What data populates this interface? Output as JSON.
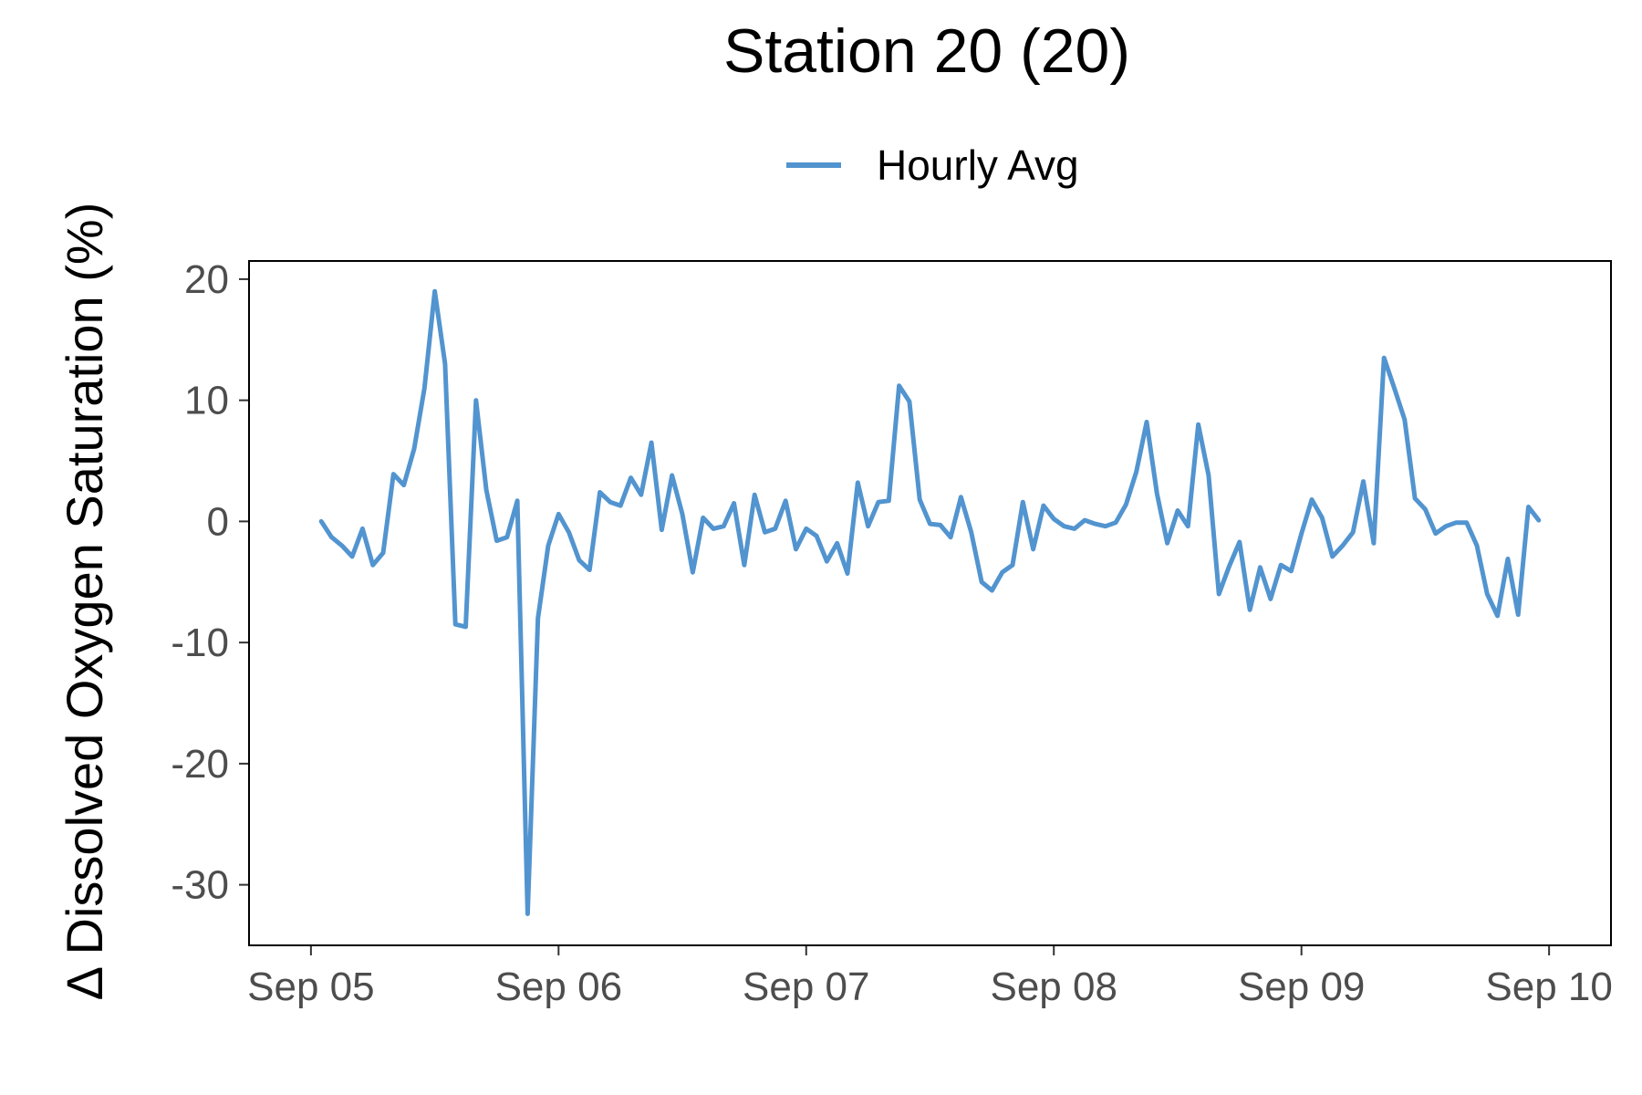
{
  "chart_data": {
    "type": "line",
    "title": "Station 20 (20)",
    "ylabel": "Δ Dissolved Oxygen Saturation (%)",
    "xlabel": "",
    "ylim": [
      -35,
      21.5
    ],
    "yticks": [
      20,
      10,
      0,
      -10,
      -20,
      -30
    ],
    "ytick_labels": [
      "20",
      "10",
      "0",
      "-10",
      "-20",
      "-30"
    ],
    "xlim": [
      "2020-09-04 18:00",
      "2020-09-10 06:00"
    ],
    "xticks": [
      "2020-09-05",
      "2020-09-06",
      "2020-09-07",
      "2020-09-08",
      "2020-09-09",
      "2020-09-10"
    ],
    "xtick_labels": [
      "Sep 05",
      "Sep 06",
      "Sep 07",
      "Sep 08",
      "Sep 09",
      "Sep 10"
    ],
    "legend_position": "top",
    "grid": false,
    "series": [
      {
        "name": "Hourly Avg",
        "color": "#5294cf",
        "x": [
          "2020-09-05 01:00",
          "2020-09-05 02:00",
          "2020-09-05 03:00",
          "2020-09-05 04:00",
          "2020-09-05 05:00",
          "2020-09-05 06:00",
          "2020-09-05 07:00",
          "2020-09-05 08:00",
          "2020-09-05 09:00",
          "2020-09-05 10:00",
          "2020-09-05 11:00",
          "2020-09-05 12:00",
          "2020-09-05 13:00",
          "2020-09-05 14:00",
          "2020-09-05 15:00",
          "2020-09-05 16:00",
          "2020-09-05 17:00",
          "2020-09-05 18:00",
          "2020-09-05 19:00",
          "2020-09-05 20:00",
          "2020-09-05 21:00",
          "2020-09-05 22:00",
          "2020-09-05 23:00",
          "2020-09-06 00:00",
          "2020-09-06 01:00",
          "2020-09-06 02:00",
          "2020-09-06 03:00",
          "2020-09-06 04:00",
          "2020-09-06 05:00",
          "2020-09-06 06:00",
          "2020-09-06 07:00",
          "2020-09-06 08:00",
          "2020-09-06 09:00",
          "2020-09-06 10:00",
          "2020-09-06 11:00",
          "2020-09-06 12:00",
          "2020-09-06 13:00",
          "2020-09-06 14:00",
          "2020-09-06 15:00",
          "2020-09-06 16:00",
          "2020-09-06 17:00",
          "2020-09-06 18:00",
          "2020-09-06 19:00",
          "2020-09-06 20:00",
          "2020-09-06 21:00",
          "2020-09-06 22:00",
          "2020-09-06 23:00",
          "2020-09-07 00:00",
          "2020-09-07 01:00",
          "2020-09-07 02:00",
          "2020-09-07 03:00",
          "2020-09-07 04:00",
          "2020-09-07 05:00",
          "2020-09-07 06:00",
          "2020-09-07 07:00",
          "2020-09-07 08:00",
          "2020-09-07 09:00",
          "2020-09-07 10:00",
          "2020-09-07 11:00",
          "2020-09-07 12:00",
          "2020-09-07 13:00",
          "2020-09-07 14:00",
          "2020-09-07 15:00",
          "2020-09-07 16:00",
          "2020-09-07 17:00",
          "2020-09-07 18:00",
          "2020-09-07 19:00",
          "2020-09-07 20:00",
          "2020-09-07 21:00",
          "2020-09-07 22:00",
          "2020-09-07 23:00",
          "2020-09-08 00:00",
          "2020-09-08 01:00",
          "2020-09-08 02:00",
          "2020-09-08 03:00",
          "2020-09-08 04:00",
          "2020-09-08 05:00",
          "2020-09-08 06:00",
          "2020-09-08 07:00",
          "2020-09-08 08:00",
          "2020-09-08 09:00",
          "2020-09-08 10:00",
          "2020-09-08 11:00",
          "2020-09-08 12:00",
          "2020-09-08 13:00",
          "2020-09-08 14:00",
          "2020-09-08 15:00",
          "2020-09-08 16:00",
          "2020-09-08 17:00",
          "2020-09-08 18:00",
          "2020-09-08 19:00",
          "2020-09-08 20:00",
          "2020-09-08 21:00",
          "2020-09-08 22:00",
          "2020-09-08 23:00",
          "2020-09-09 00:00",
          "2020-09-09 01:00",
          "2020-09-09 02:00",
          "2020-09-09 03:00",
          "2020-09-09 04:00",
          "2020-09-09 05:00",
          "2020-09-09 06:00",
          "2020-09-09 07:00",
          "2020-09-09 08:00",
          "2020-09-09 09:00",
          "2020-09-09 10:00",
          "2020-09-09 11:00",
          "2020-09-09 12:00",
          "2020-09-09 13:00",
          "2020-09-09 14:00",
          "2020-09-09 15:00",
          "2020-09-09 16:00",
          "2020-09-09 17:00",
          "2020-09-09 18:00",
          "2020-09-09 19:00",
          "2020-09-09 20:00",
          "2020-09-09 21:00",
          "2020-09-09 22:00",
          "2020-09-09 23:00"
        ],
        "values": [
          0.0,
          -1.3,
          -2.0,
          -2.9,
          -0.6,
          -3.6,
          -2.6,
          3.9,
          3.0,
          6.0,
          11.0,
          19.0,
          13.0,
          -8.5,
          -8.7,
          10.0,
          2.6,
          -1.6,
          -1.3,
          1.7,
          -32.4,
          -8.0,
          -2.0,
          0.6,
          -0.9,
          -3.2,
          -4.0,
          2.4,
          1.6,
          1.3,
          3.6,
          2.2,
          6.5,
          -0.7,
          3.8,
          0.6,
          -4.2,
          0.3,
          -0.6,
          -0.4,
          1.5,
          -3.6,
          2.2,
          -0.9,
          -0.6,
          1.7,
          -2.3,
          -0.6,
          -1.2,
          -3.3,
          -1.8,
          -4.3,
          3.2,
          -0.4,
          1.6,
          1.7,
          11.2,
          9.9,
          1.8,
          -0.2,
          -0.3,
          -1.3,
          2.0,
          -0.9,
          -5.0,
          -5.7,
          -4.2,
          -3.6,
          1.6,
          -2.3,
          1.3,
          0.2,
          -0.4,
          -0.6,
          0.1,
          -0.2,
          -0.4,
          -0.1,
          1.4,
          4.1,
          8.2,
          2.3,
          -1.8,
          0.9,
          -0.4,
          8.0,
          3.8,
          -6.0,
          -3.7,
          -1.7,
          -7.3,
          -3.8,
          -6.4,
          -3.6,
          -4.1,
          -1.0,
          1.8,
          0.3,
          -2.9,
          -2.0,
          -0.9,
          3.3,
          -1.8,
          13.5,
          11.0,
          8.4,
          1.9,
          1.0,
          -1.0,
          -0.4,
          -0.1,
          -0.1,
          -2.0,
          -6.0,
          -7.8,
          -3.1,
          -7.7,
          1.2,
          0.1
        ]
      }
    ]
  }
}
